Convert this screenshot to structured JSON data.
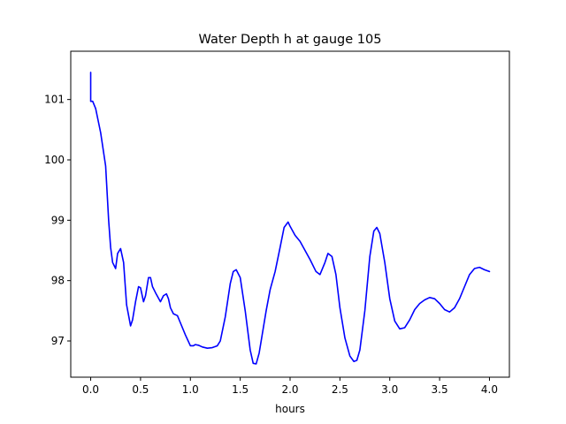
{
  "chart_data": {
    "type": "line",
    "title": "Water Depth h at gauge 105",
    "xlabel": "hours",
    "ylabel": "",
    "xlim": [
      -0.2,
      4.2
    ],
    "ylim": [
      96.4,
      101.8
    ],
    "xticks": [
      0.0,
      0.5,
      1.0,
      1.5,
      2.0,
      2.5,
      3.0,
      3.5,
      4.0
    ],
    "xtick_labels": [
      "0.0",
      "0.5",
      "1.0",
      "1.5",
      "2.0",
      "2.5",
      "3.0",
      "3.5",
      "4.0"
    ],
    "yticks": [
      97,
      98,
      99,
      100,
      101
    ],
    "ytick_labels": [
      "97",
      "98",
      "99",
      "100",
      "101"
    ],
    "grid": false,
    "series": [
      {
        "color": "#0000ff",
        "x": [
          0.0,
          0.0,
          0.02,
          0.05,
          0.1,
          0.15,
          0.18,
          0.2,
          0.22,
          0.25,
          0.27,
          0.3,
          0.33,
          0.36,
          0.4,
          0.42,
          0.45,
          0.48,
          0.5,
          0.53,
          0.55,
          0.58,
          0.6,
          0.62,
          0.65,
          0.7,
          0.73,
          0.76,
          0.78,
          0.8,
          0.83,
          0.87,
          0.9,
          0.95,
          1.0,
          1.03,
          1.05,
          1.08,
          1.12,
          1.17,
          1.22,
          1.27,
          1.3,
          1.35,
          1.4,
          1.43,
          1.46,
          1.5,
          1.55,
          1.6,
          1.63,
          1.66,
          1.69,
          1.72,
          1.76,
          1.8,
          1.85,
          1.9,
          1.94,
          1.98,
          2.0,
          2.05,
          2.1,
          2.2,
          2.26,
          2.3,
          2.35,
          2.38,
          2.42,
          2.46,
          2.5,
          2.55,
          2.6,
          2.64,
          2.67,
          2.7,
          2.75,
          2.8,
          2.84,
          2.87,
          2.9,
          2.95,
          3.0,
          3.05,
          3.1,
          3.15,
          3.2,
          3.25,
          3.3,
          3.35,
          3.4,
          3.45,
          3.5,
          3.55,
          3.6,
          3.65,
          3.7,
          3.75,
          3.8,
          3.85,
          3.9,
          3.95,
          4.0
        ],
        "y": [
          101.45,
          100.97,
          100.97,
          100.85,
          100.45,
          99.9,
          99.0,
          98.55,
          98.3,
          98.2,
          98.45,
          98.53,
          98.3,
          97.6,
          97.25,
          97.35,
          97.65,
          97.9,
          97.88,
          97.65,
          97.75,
          98.05,
          98.05,
          97.9,
          97.8,
          97.65,
          97.75,
          97.78,
          97.7,
          97.55,
          97.45,
          97.42,
          97.3,
          97.1,
          96.92,
          96.92,
          96.94,
          96.93,
          96.9,
          96.88,
          96.89,
          96.92,
          97.0,
          97.4,
          97.95,
          98.15,
          98.18,
          98.05,
          97.5,
          96.85,
          96.63,
          96.62,
          96.8,
          97.1,
          97.5,
          97.85,
          98.15,
          98.55,
          98.88,
          98.97,
          98.9,
          98.75,
          98.65,
          98.35,
          98.15,
          98.1,
          98.3,
          98.45,
          98.4,
          98.1,
          97.55,
          97.05,
          96.75,
          96.66,
          96.68,
          96.85,
          97.5,
          98.4,
          98.82,
          98.88,
          98.78,
          98.3,
          97.7,
          97.33,
          97.2,
          97.22,
          97.35,
          97.52,
          97.62,
          97.68,
          97.72,
          97.7,
          97.62,
          97.52,
          97.48,
          97.55,
          97.7,
          97.9,
          98.1,
          98.2,
          98.22,
          98.18,
          98.15
        ]
      }
    ]
  }
}
